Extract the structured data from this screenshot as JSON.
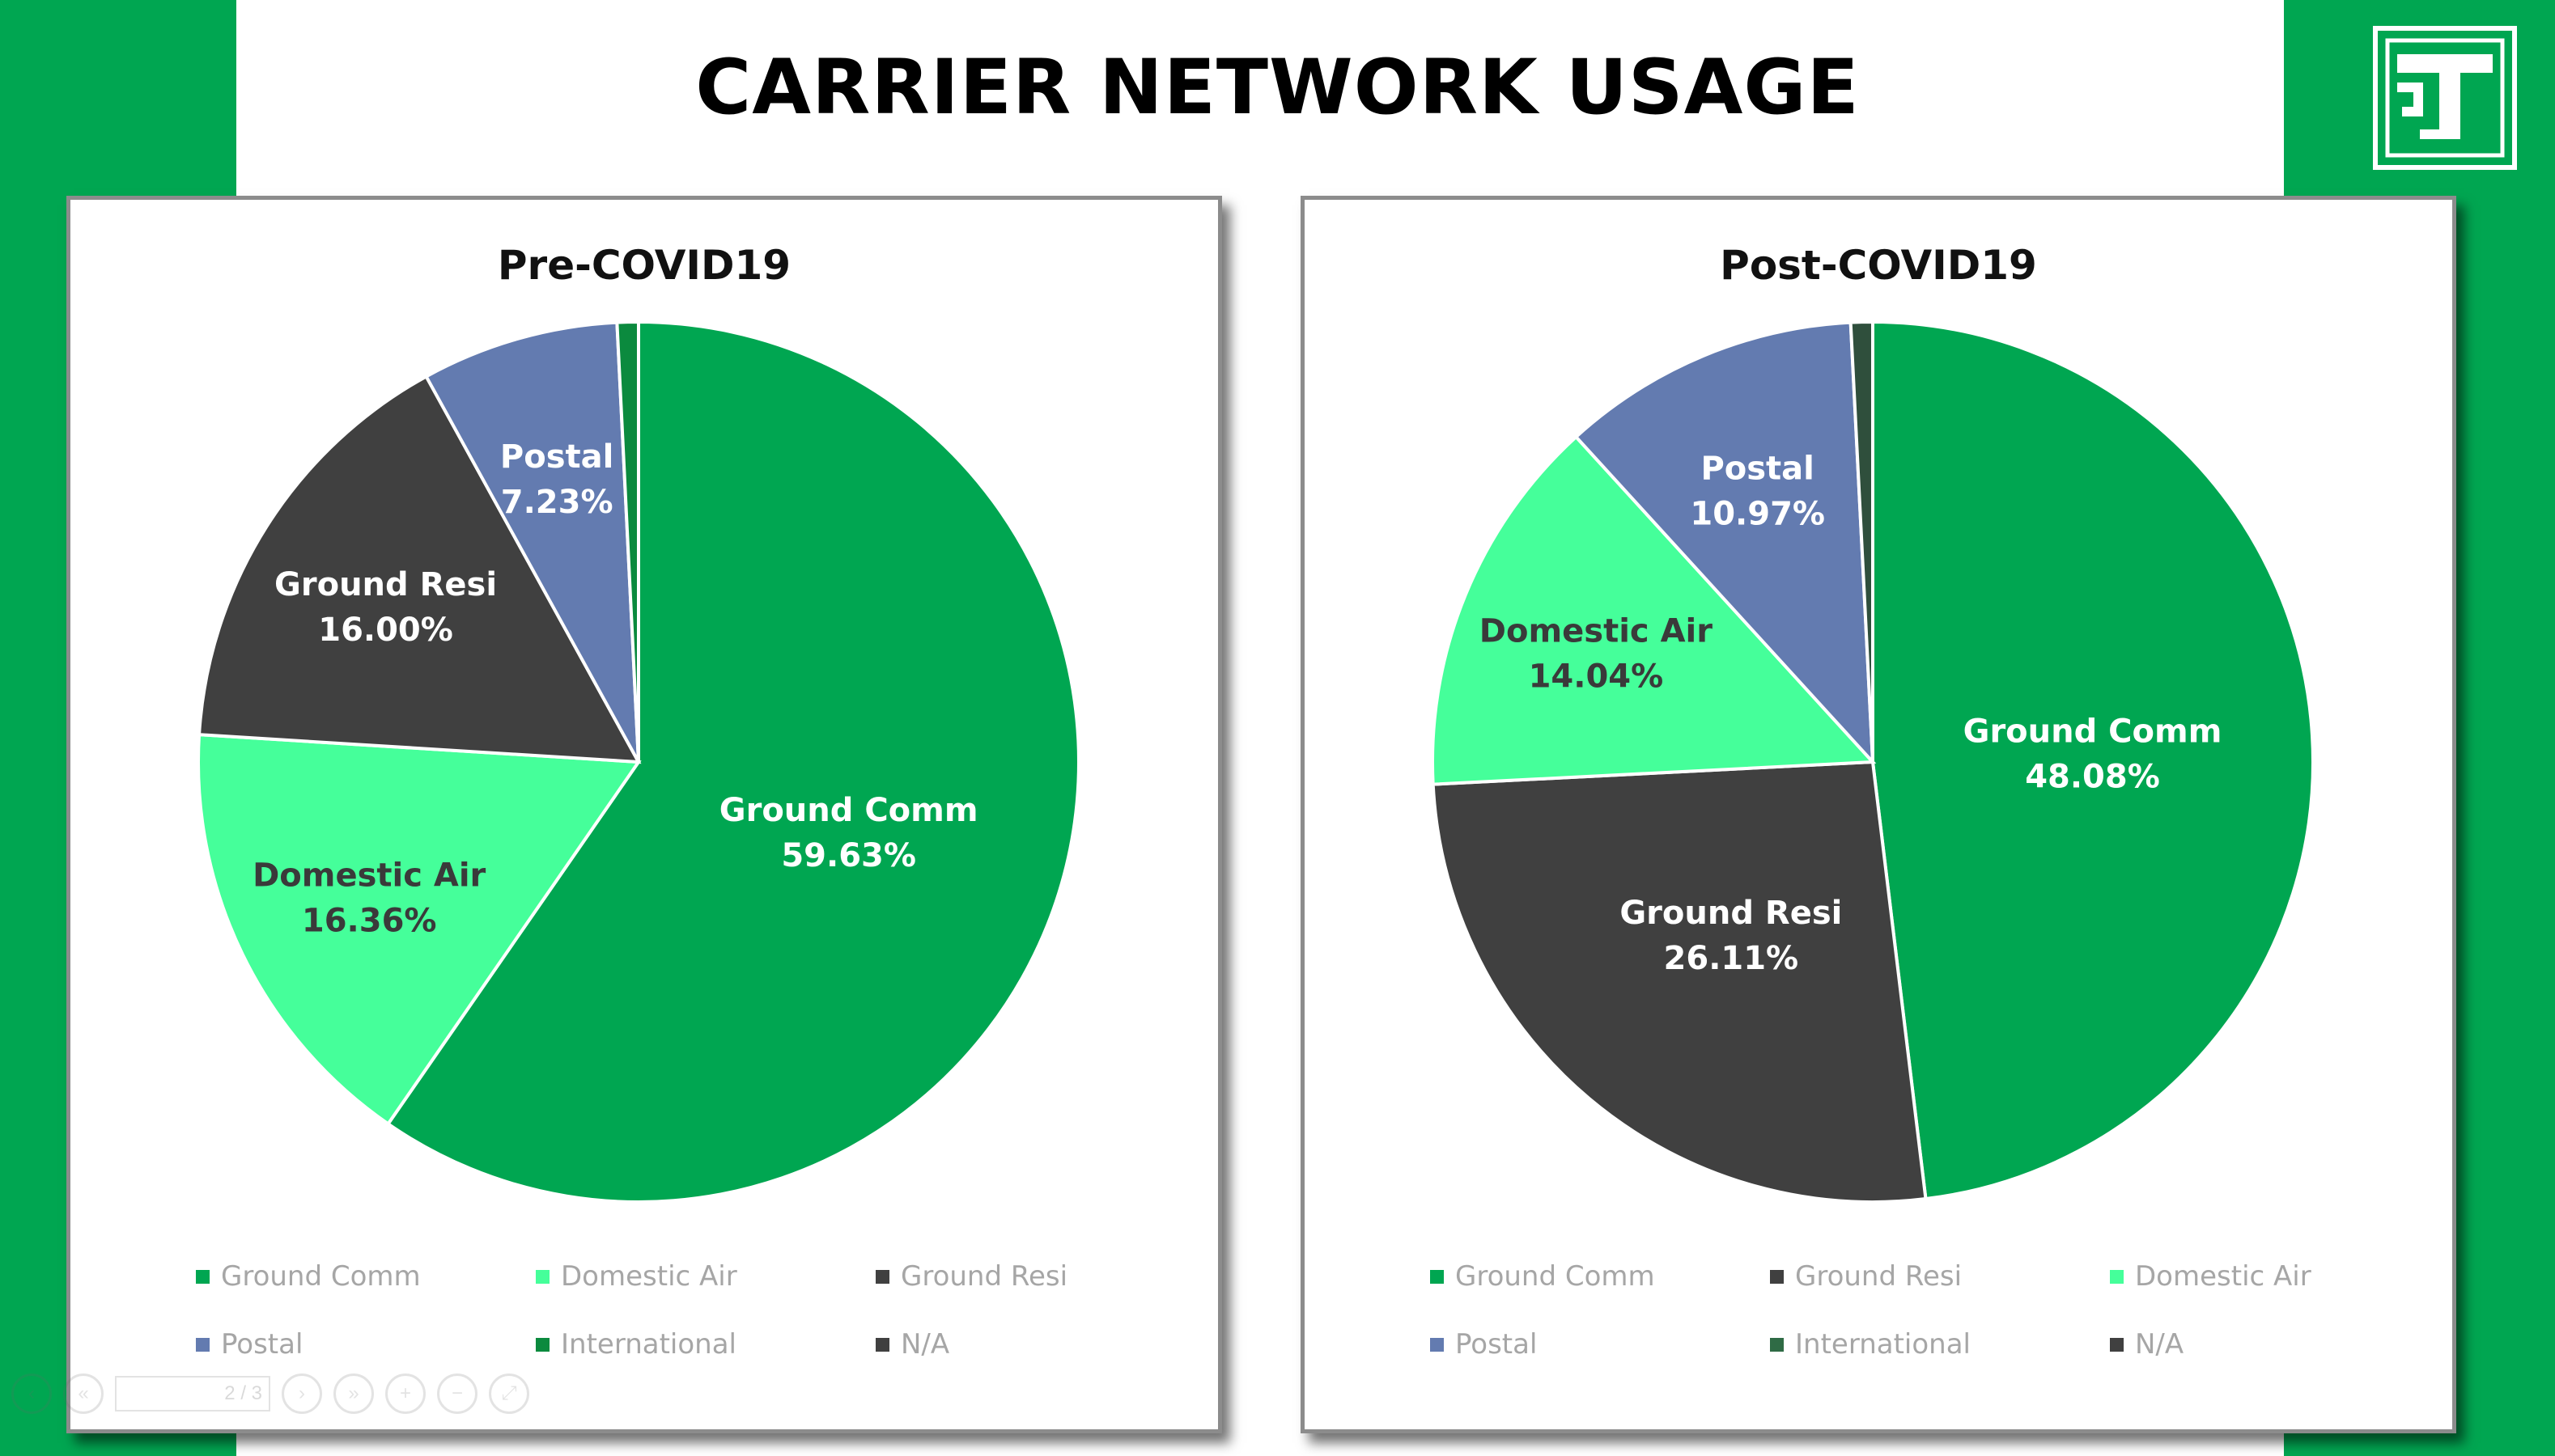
{
  "page": {
    "title": "CARRIER NETWORK USAGE"
  },
  "colors": {
    "background": "#00a651",
    "ground_comm": "#00a651",
    "domestic_air": "#45ff9a",
    "ground_resi": "#404040",
    "postal": "#637bb0",
    "international": "#0b8a3e",
    "na": "#2f4f3c"
  },
  "logo": {
    "icon": "company-logo-icon",
    "text": "TJ"
  },
  "chart_data": [
    {
      "type": "pie",
      "title": "Pre-COVID19",
      "slices": [
        {
          "name": "Ground Comm",
          "value": 59.63,
          "label": "59.63%",
          "color": "#00a651",
          "text_color": "#ffffff",
          "show_label": true
        },
        {
          "name": "Domestic Air",
          "value": 16.36,
          "label": "16.36%",
          "color": "#45ff9a",
          "text_color": "#3a3a3a",
          "show_label": true
        },
        {
          "name": "Ground Resi",
          "value": 16.0,
          "label": "16.00%",
          "color": "#404040",
          "text_color": "#ffffff",
          "show_label": true
        },
        {
          "name": "Postal",
          "value": 7.23,
          "label": "7.23%",
          "color": "#637bb0",
          "text_color": "#ffffff",
          "show_label": true
        },
        {
          "name": "International",
          "value": 0.78,
          "label": "",
          "color": "#0b8a3e",
          "text_color": "#ffffff",
          "show_label": false
        }
      ],
      "legend": [
        {
          "name": "Ground Comm",
          "color": "#00a651"
        },
        {
          "name": "Domestic Air",
          "color": "#45ff9a"
        },
        {
          "name": "Ground Resi",
          "color": "#404040"
        },
        {
          "name": "Postal",
          "color": "#637bb0"
        },
        {
          "name": "International",
          "color": "#0b8a3e"
        },
        {
          "name": "N/A",
          "color": "#404040"
        }
      ]
    },
    {
      "type": "pie",
      "title": "Post-COVID19",
      "slices": [
        {
          "name": "Ground Comm",
          "value": 48.08,
          "label": "48.08%",
          "color": "#00a651",
          "text_color": "#ffffff",
          "show_label": true
        },
        {
          "name": "Ground Resi",
          "value": 26.11,
          "label": "26.11%",
          "color": "#404040",
          "text_color": "#ffffff",
          "show_label": true
        },
        {
          "name": "Domestic Air",
          "value": 14.04,
          "label": "14.04%",
          "color": "#45ff9a",
          "text_color": "#3a3a3a",
          "show_label": true
        },
        {
          "name": "Postal",
          "value": 10.97,
          "label": "10.97%",
          "color": "#637bb0",
          "text_color": "#ffffff",
          "show_label": true
        },
        {
          "name": "N/A",
          "value": 0.8,
          "label": "",
          "color": "#2f4f3c",
          "text_color": "#ffffff",
          "show_label": false
        }
      ],
      "legend": [
        {
          "name": "Ground Comm",
          "color": "#00a651"
        },
        {
          "name": "Ground Resi",
          "color": "#404040"
        },
        {
          "name": "Domestic Air",
          "color": "#45ff9a"
        },
        {
          "name": "Postal",
          "color": "#637bb0"
        },
        {
          "name": "International",
          "color": "#2f6b45"
        },
        {
          "name": "N/A",
          "color": "#404040"
        }
      ]
    }
  ],
  "viewer_toolbar": {
    "page_indicator": "2 / 3",
    "zoom_icon": "zoom-icon",
    "fit_icon": "fit-page-icon"
  }
}
